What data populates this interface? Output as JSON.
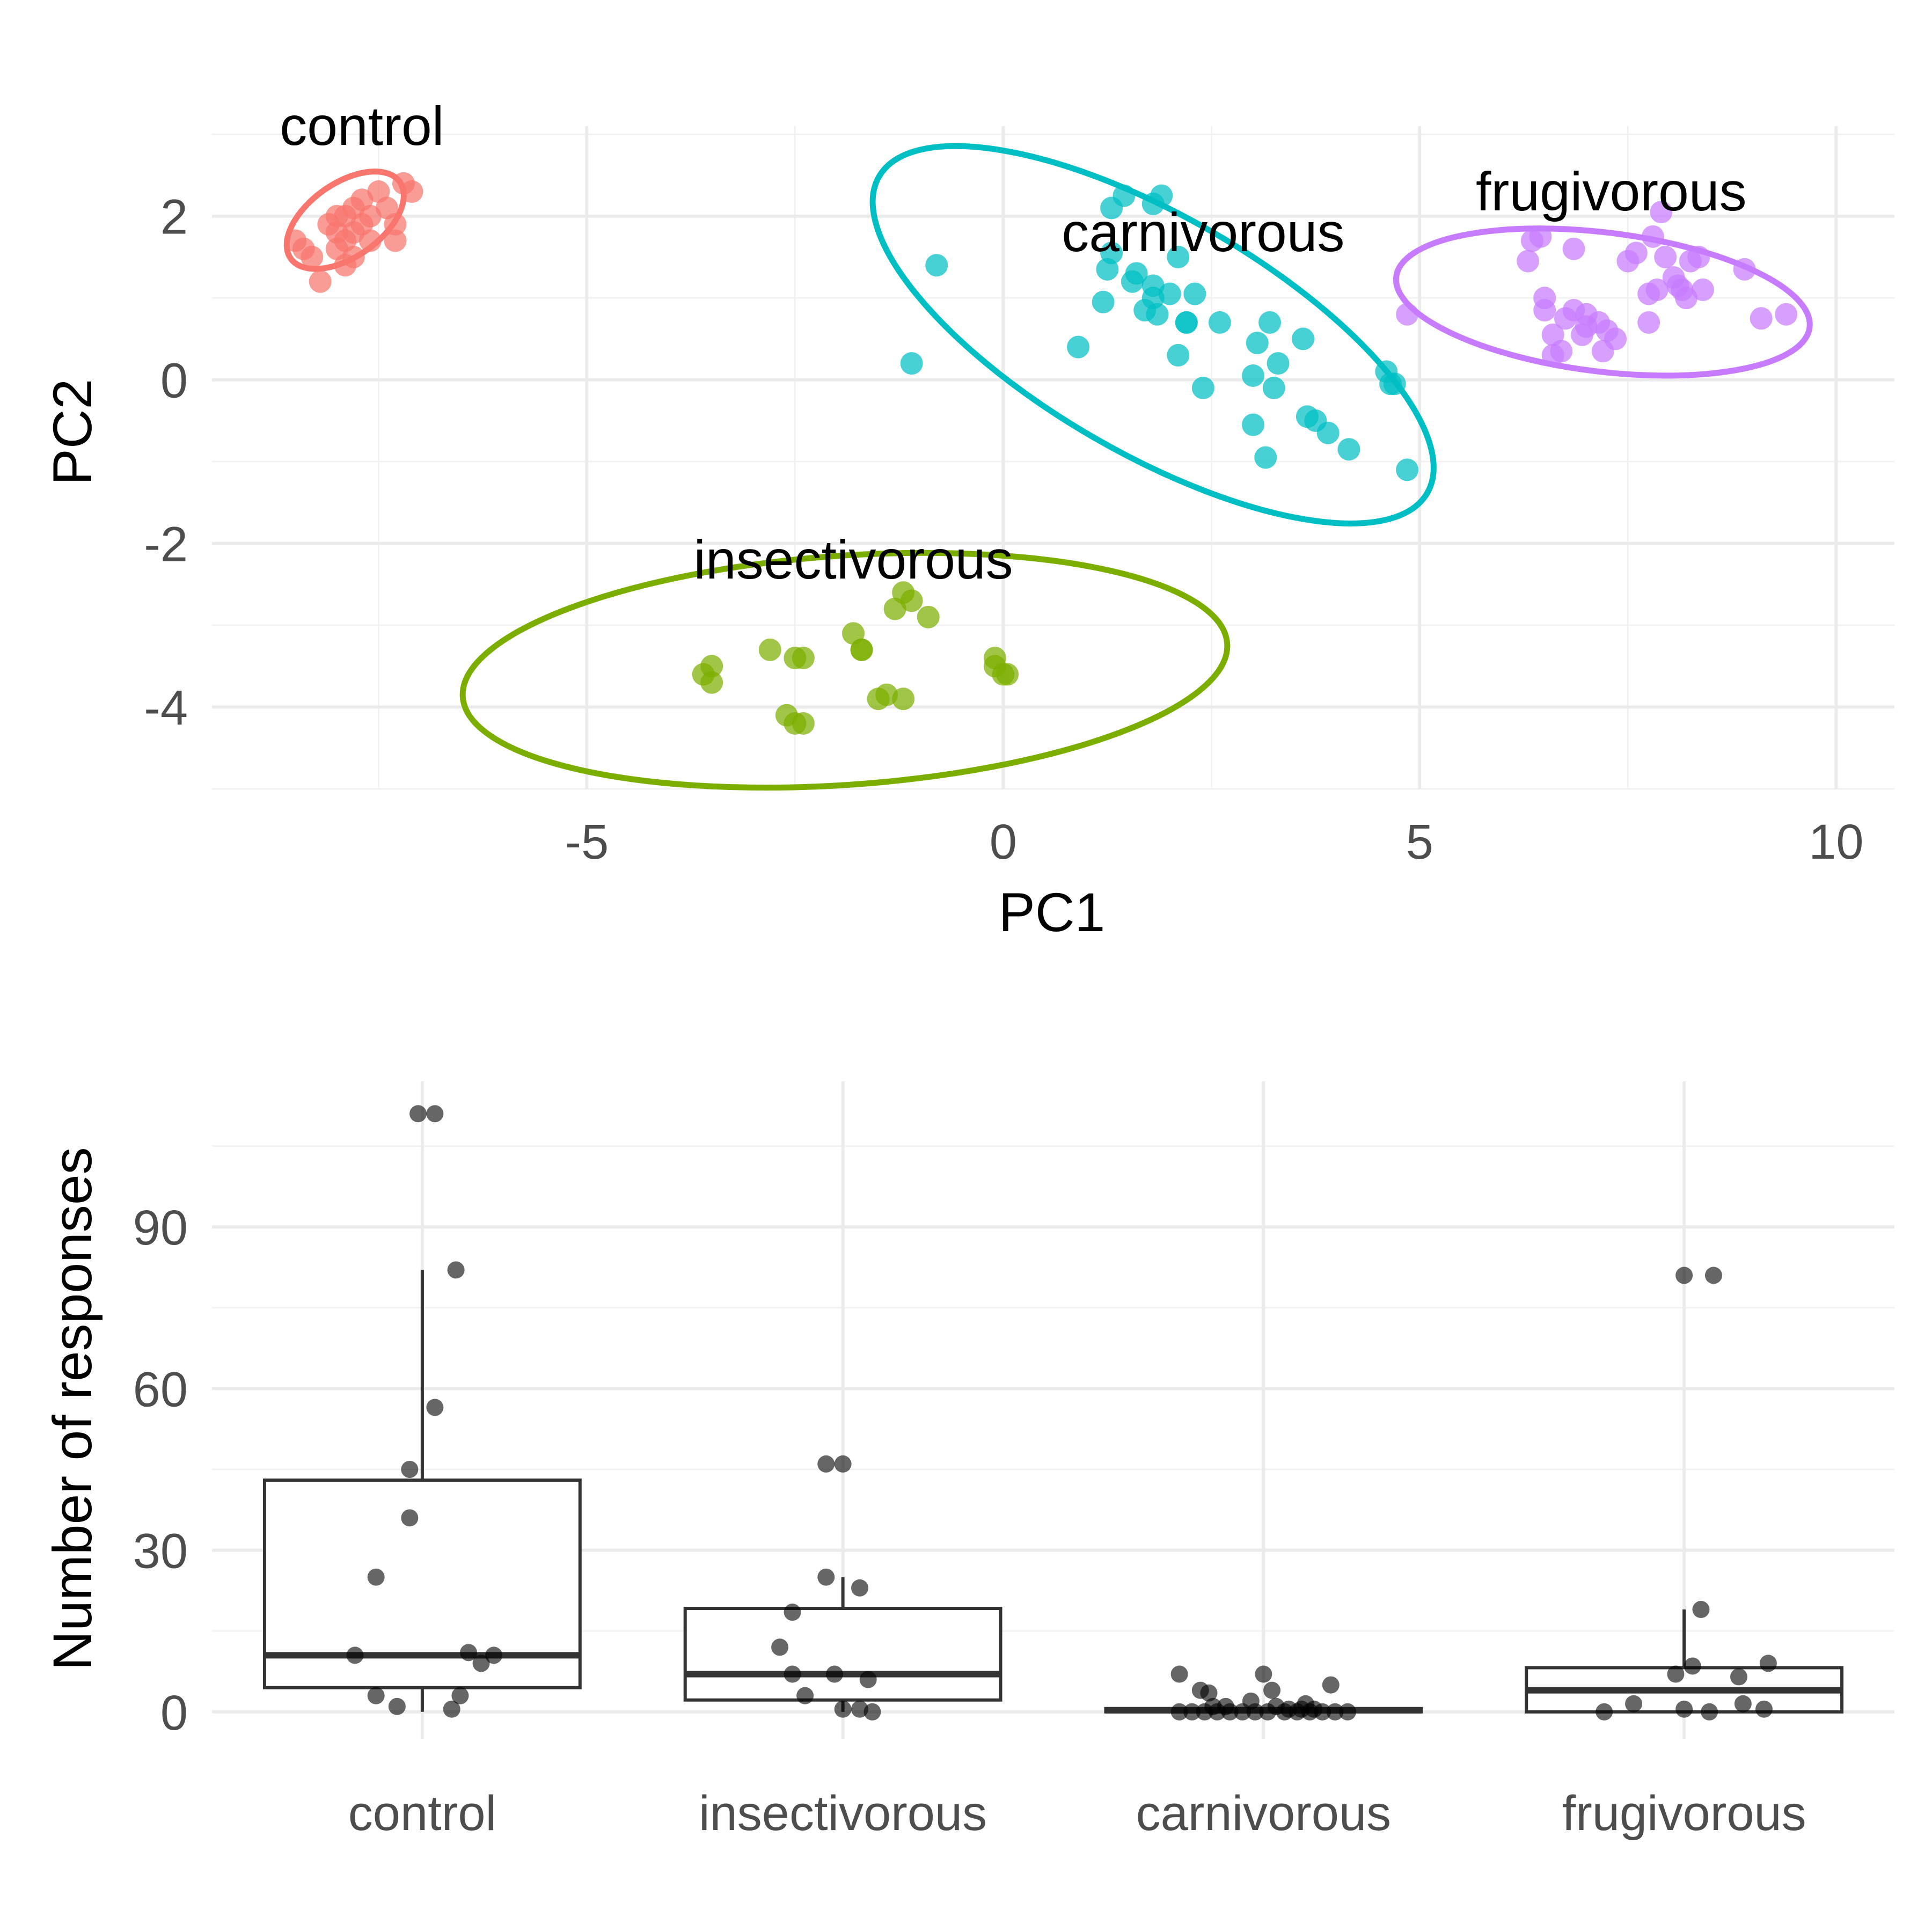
{
  "chart_data": [
    {
      "type": "scatter",
      "xlabel": "PC1",
      "ylabel": "PC2",
      "xlim": [
        -9.5,
        10.7
      ],
      "ylim": [
        -5.0,
        3.1
      ],
      "xticks": [
        -5,
        0,
        5,
        10
      ],
      "xtick_labels": [
        "-5",
        "0",
        "5",
        "10"
      ],
      "yticks": [
        -4,
        -2,
        0,
        2
      ],
      "ytick_labels": [
        "-4",
        "-2",
        "0",
        "2"
      ],
      "grid": true,
      "legend": "none",
      "series": [
        {
          "name": "control",
          "color": "#F8766D",
          "ellipse": {
            "cx": -7.9,
            "cy": 1.95,
            "rx": 0.8,
            "ry": 0.45,
            "angle_deg": 35
          },
          "points": [
            [
              -8.5,
              1.7
            ],
            [
              -8.4,
              1.6
            ],
            [
              -8.3,
              1.5
            ],
            [
              -8.2,
              1.2
            ],
            [
              -8.1,
              1.9
            ],
            [
              -8.0,
              1.8
            ],
            [
              -8.0,
              1.6
            ],
            [
              -7.9,
              2.0
            ],
            [
              -7.9,
              1.7
            ],
            [
              -7.8,
              2.1
            ],
            [
              -7.8,
              1.8
            ],
            [
              -7.7,
              2.2
            ],
            [
              -7.7,
              1.9
            ],
            [
              -7.6,
              2.0
            ],
            [
              -7.5,
              2.3
            ],
            [
              -7.4,
              2.1
            ],
            [
              -7.3,
              1.9
            ],
            [
              -7.2,
              2.4
            ],
            [
              -7.1,
              2.3
            ],
            [
              -7.3,
              1.7
            ],
            [
              -7.8,
              1.5
            ],
            [
              -8.0,
              2.0
            ],
            [
              -7.6,
              1.7
            ],
            [
              -7.9,
              1.4
            ]
          ]
        },
        {
          "name": "insectivorous",
          "color": "#7CAE00",
          "ellipse": {
            "cx": -1.9,
            "cy": -3.55,
            "rx": 4.6,
            "ry": 1.4,
            "angle_deg": 4
          },
          "points": [
            [
              -3.6,
              -3.6
            ],
            [
              -3.5,
              -3.7
            ],
            [
              -3.5,
              -3.5
            ],
            [
              -2.8,
              -3.3
            ],
            [
              -2.6,
              -4.1
            ],
            [
              -2.5,
              -3.4
            ],
            [
              -2.5,
              -4.2
            ],
            [
              -2.4,
              -3.4
            ],
            [
              -2.4,
              -4.2
            ],
            [
              -1.8,
              -3.1
            ],
            [
              -1.7,
              -3.3
            ],
            [
              -1.7,
              -3.3
            ],
            [
              -1.5,
              -3.9
            ],
            [
              -1.4,
              -3.85
            ],
            [
              -1.3,
              -2.8
            ],
            [
              -1.2,
              -2.6
            ],
            [
              -1.2,
              -3.9
            ],
            [
              -1.1,
              -2.7
            ],
            [
              -0.9,
              -2.9
            ],
            [
              -0.1,
              -3.5
            ],
            [
              -0.1,
              -3.4
            ],
            [
              0.0,
              -3.6
            ],
            [
              0.05,
              -3.6
            ]
          ]
        },
        {
          "name": "carnivorous",
          "color": "#00BFC4",
          "ellipse": {
            "cx": 1.8,
            "cy": 0.55,
            "rx": 3.8,
            "ry": 1.45,
            "angle_deg": -30
          },
          "points": [
            [
              -0.8,
              1.4
            ],
            [
              -1.1,
              0.2
            ],
            [
              0.9,
              0.4
            ],
            [
              1.2,
              0.95
            ],
            [
              1.25,
              1.35
            ],
            [
              1.3,
              2.1
            ],
            [
              1.3,
              1.55
            ],
            [
              1.45,
              2.25
            ],
            [
              1.55,
              1.2
            ],
            [
              1.6,
              1.3
            ],
            [
              1.7,
              0.85
            ],
            [
              1.8,
              2.15
            ],
            [
              1.8,
              1.0
            ],
            [
              1.8,
              1.15
            ],
            [
              1.85,
              0.8
            ],
            [
              1.9,
              2.25
            ],
            [
              2.0,
              1.05
            ],
            [
              2.1,
              1.5
            ],
            [
              2.1,
              0.3
            ],
            [
              2.2,
              0.7
            ],
            [
              2.2,
              0.7
            ],
            [
              2.3,
              1.05
            ],
            [
              2.4,
              -0.1
            ],
            [
              2.6,
              0.7
            ],
            [
              3.0,
              0.05
            ],
            [
              3.0,
              -0.55
            ],
            [
              3.05,
              0.45
            ],
            [
              3.15,
              -0.95
            ],
            [
              3.2,
              0.7
            ],
            [
              3.25,
              -0.1
            ],
            [
              3.3,
              0.2
            ],
            [
              3.6,
              0.5
            ],
            [
              3.65,
              -0.45
            ],
            [
              3.75,
              -0.5
            ],
            [
              3.9,
              -0.65
            ],
            [
              4.15,
              -0.85
            ],
            [
              4.6,
              0.1
            ],
            [
              4.65,
              -0.05
            ],
            [
              4.7,
              -0.05
            ],
            [
              4.85,
              -1.1
            ]
          ]
        },
        {
          "name": "frugivorous",
          "color": "#C77CFF",
          "ellipse": {
            "cx": 7.2,
            "cy": 0.95,
            "rx": 2.5,
            "ry": 0.85,
            "angle_deg": -7
          },
          "points": [
            [
              4.85,
              0.8
            ],
            [
              6.3,
              1.45
            ],
            [
              6.35,
              1.7
            ],
            [
              6.45,
              1.75
            ],
            [
              6.5,
              1.0
            ],
            [
              6.5,
              0.85
            ],
            [
              6.6,
              0.3
            ],
            [
              6.6,
              0.55
            ],
            [
              6.7,
              0.35
            ],
            [
              6.75,
              0.75
            ],
            [
              6.85,
              1.6
            ],
            [
              6.85,
              0.85
            ],
            [
              6.95,
              0.55
            ],
            [
              7.0,
              0.65
            ],
            [
              7.0,
              0.8
            ],
            [
              7.15,
              0.7
            ],
            [
              7.2,
              0.35
            ],
            [
              7.25,
              0.6
            ],
            [
              7.35,
              0.5
            ],
            [
              7.5,
              1.45
            ],
            [
              7.6,
              1.55
            ],
            [
              7.75,
              1.05
            ],
            [
              7.75,
              0.7
            ],
            [
              7.8,
              1.75
            ],
            [
              7.85,
              1.1
            ],
            [
              7.9,
              2.05
            ],
            [
              7.95,
              1.5
            ],
            [
              8.05,
              1.25
            ],
            [
              8.1,
              1.15
            ],
            [
              8.15,
              1.1
            ],
            [
              8.2,
              1.0
            ],
            [
              8.25,
              1.45
            ],
            [
              8.35,
              1.5
            ],
            [
              8.4,
              1.1
            ],
            [
              8.9,
              1.35
            ],
            [
              9.1,
              0.75
            ],
            [
              9.4,
              0.8
            ]
          ]
        }
      ],
      "annotations": [
        {
          "text": "control",
          "x": -7.7,
          "y": 3.1
        },
        {
          "text": "insectivorous",
          "x": -1.8,
          "y": -2.2
        },
        {
          "text": "carnivorous",
          "x": 2.4,
          "y": 1.8
        },
        {
          "text": "frugivorous",
          "x": 7.3,
          "y": 2.3
        }
      ]
    },
    {
      "type": "box",
      "xlabel": "",
      "ylabel": "Number of responses",
      "categories": [
        "control",
        "insectivorous",
        "carnivorous",
        "frugivorous"
      ],
      "ylim": [
        -5,
        117
      ],
      "yticks": [
        0,
        30,
        60,
        90
      ],
      "ytick_labels": [
        "0",
        "30",
        "60",
        "90"
      ],
      "grid": true,
      "legend": "none",
      "boxes": [
        {
          "category": "control",
          "q1": 4.5,
          "median": 10.5,
          "q3": 43,
          "whisker_low": 0,
          "whisker_high": 82
        },
        {
          "category": "insectivorous",
          "q1": 2.2,
          "median": 7,
          "q3": 19.2,
          "whisker_low": 0,
          "whisker_high": 25
        },
        {
          "category": "carnivorous",
          "q1": 0,
          "median": 0.3,
          "q3": 0.6,
          "whisker_low": 0,
          "whisker_high": 0.6
        },
        {
          "category": "frugivorous",
          "q1": 0,
          "median": 4,
          "q3": 8.2,
          "whisker_low": 0,
          "whisker_high": 19
        }
      ],
      "points": {
        "control": [
          [
            -0.01,
            111
          ],
          [
            0.03,
            111
          ],
          [
            0.08,
            82
          ],
          [
            0.03,
            56.5
          ],
          [
            -0.03,
            45
          ],
          [
            -0.03,
            36
          ],
          [
            -0.11,
            25
          ],
          [
            -0.16,
            10.5
          ],
          [
            0.17,
            10.5
          ],
          [
            0.14,
            9
          ],
          [
            0.11,
            11
          ],
          [
            -0.11,
            3
          ],
          [
            0.09,
            3
          ],
          [
            -0.06,
            1
          ],
          [
            0.07,
            0.5
          ]
        ],
        "insectivorous": [
          [
            -0.04,
            46
          ],
          [
            0.0,
            46
          ],
          [
            -0.04,
            25
          ],
          [
            0.04,
            23
          ],
          [
            -0.12,
            18.5
          ],
          [
            -0.15,
            12
          ],
          [
            -0.12,
            7
          ],
          [
            -0.02,
            7
          ],
          [
            0.06,
            6
          ],
          [
            -0.09,
            3
          ],
          [
            0.0,
            0.5
          ],
          [
            0.04,
            0.5
          ],
          [
            0.07,
            0
          ]
        ],
        "carnivorous": [
          [
            -0.2,
            7
          ],
          [
            0.0,
            7
          ],
          [
            -0.15,
            4
          ],
          [
            -0.13,
            3.5
          ],
          [
            0.02,
            4
          ],
          [
            0.16,
            5
          ],
          [
            -0.12,
            1
          ],
          [
            -0.09,
            1
          ],
          [
            -0.03,
            2
          ],
          [
            0.03,
            1
          ],
          [
            0.1,
            1.5
          ],
          [
            -0.2,
            0
          ],
          [
            -0.17,
            0
          ],
          [
            -0.14,
            0
          ],
          [
            -0.08,
            0
          ],
          [
            -0.05,
            0
          ],
          [
            -0.02,
            0
          ],
          [
            0.01,
            0
          ],
          [
            0.05,
            0
          ],
          [
            0.08,
            0
          ],
          [
            0.11,
            0
          ],
          [
            0.14,
            0
          ],
          [
            0.17,
            0
          ],
          [
            0.2,
            0
          ],
          [
            0.09,
            0.5
          ],
          [
            0.12,
            0.5
          ],
          [
            -0.11,
            0
          ],
          [
            0.06,
            0.5
          ]
        ],
        "frugivorous": [
          [
            0.0,
            81
          ],
          [
            0.07,
            81
          ],
          [
            0.04,
            19
          ],
          [
            0.02,
            8.5
          ],
          [
            -0.02,
            7
          ],
          [
            0.2,
            9
          ],
          [
            0.13,
            6.5
          ],
          [
            -0.19,
            0
          ],
          [
            -0.12,
            1.5
          ],
          [
            0.0,
            0.5
          ],
          [
            0.06,
            0
          ],
          [
            0.14,
            1.5
          ],
          [
            0.19,
            0.5
          ]
        ]
      }
    }
  ]
}
